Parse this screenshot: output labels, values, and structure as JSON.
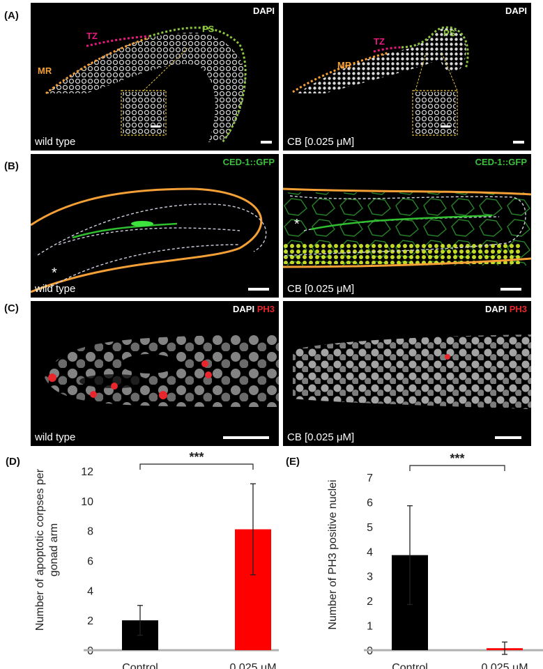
{
  "panel_labels": {
    "a": "(A)",
    "b": "(B)",
    "c": "(C)",
    "d": "(D)",
    "e": "(E)"
  },
  "row_a": {
    "left": {
      "stain": "DAPI",
      "zone_mr": "MR",
      "zone_tz": "TZ",
      "zone_ps": "PS",
      "condition": "wild type"
    },
    "right": {
      "stain": "DAPI",
      "zone_mr": "MR",
      "zone_tz": "TZ",
      "zone_ps": "PS",
      "condition": "CB [0.025 μM]"
    }
  },
  "row_b": {
    "left": {
      "stain": "CED-1::GFP",
      "marker": "*",
      "condition": "wild type"
    },
    "right": {
      "stain": "CED-1::GFP",
      "marker": "*",
      "condition": "CB [0.025 μM]"
    }
  },
  "row_c": {
    "left": {
      "stain_a": "DAPI",
      "stain_b": "PH3",
      "condition": "wild type"
    },
    "right": {
      "stain_a": "DAPI",
      "stain_b": "PH3",
      "condition": "CB [0.025 μM]"
    }
  },
  "colors": {
    "mr": "#f5a036",
    "tz": "#e8197f",
    "ps": "#8cc63f",
    "gfp": "#3fbf3f",
    "outline": "#f5a036",
    "ph3": "#e8262b",
    "bar_control": "#000000",
    "bar_treated": "#ff0000"
  },
  "chart_data": [
    {
      "type": "bar",
      "categories": [
        "Control",
        "0.025 μM"
      ],
      "values": [
        2.0,
        8.1
      ],
      "errors": [
        1.0,
        3.05
      ],
      "ylabel": "Number of apoptotic corpses per gonad arm",
      "ylabel_lines": [
        "Number of apoptotic corpses per",
        "gonad arm"
      ],
      "ylim": [
        0,
        12
      ],
      "yticks": [
        "0",
        "2",
        "4",
        "6",
        "8",
        "10",
        "12"
      ],
      "significance": "***",
      "colors": [
        "#000000",
        "#ff0000"
      ]
    },
    {
      "type": "bar",
      "categories": [
        "Control",
        "0.025 μM"
      ],
      "values": [
        3.85,
        0.08
      ],
      "errors": [
        2.0,
        0.25
      ],
      "ylabel": "Number of PH3 positive  nuclei",
      "ylabel_lines": [
        "Number of PH3 positive  nuclei"
      ],
      "ylim": [
        0,
        7
      ],
      "yticks": [
        "0",
        "1",
        "2",
        "3",
        "4",
        "5",
        "6",
        "7"
      ],
      "significance": "***",
      "colors": [
        "#000000",
        "#ff0000"
      ]
    }
  ]
}
